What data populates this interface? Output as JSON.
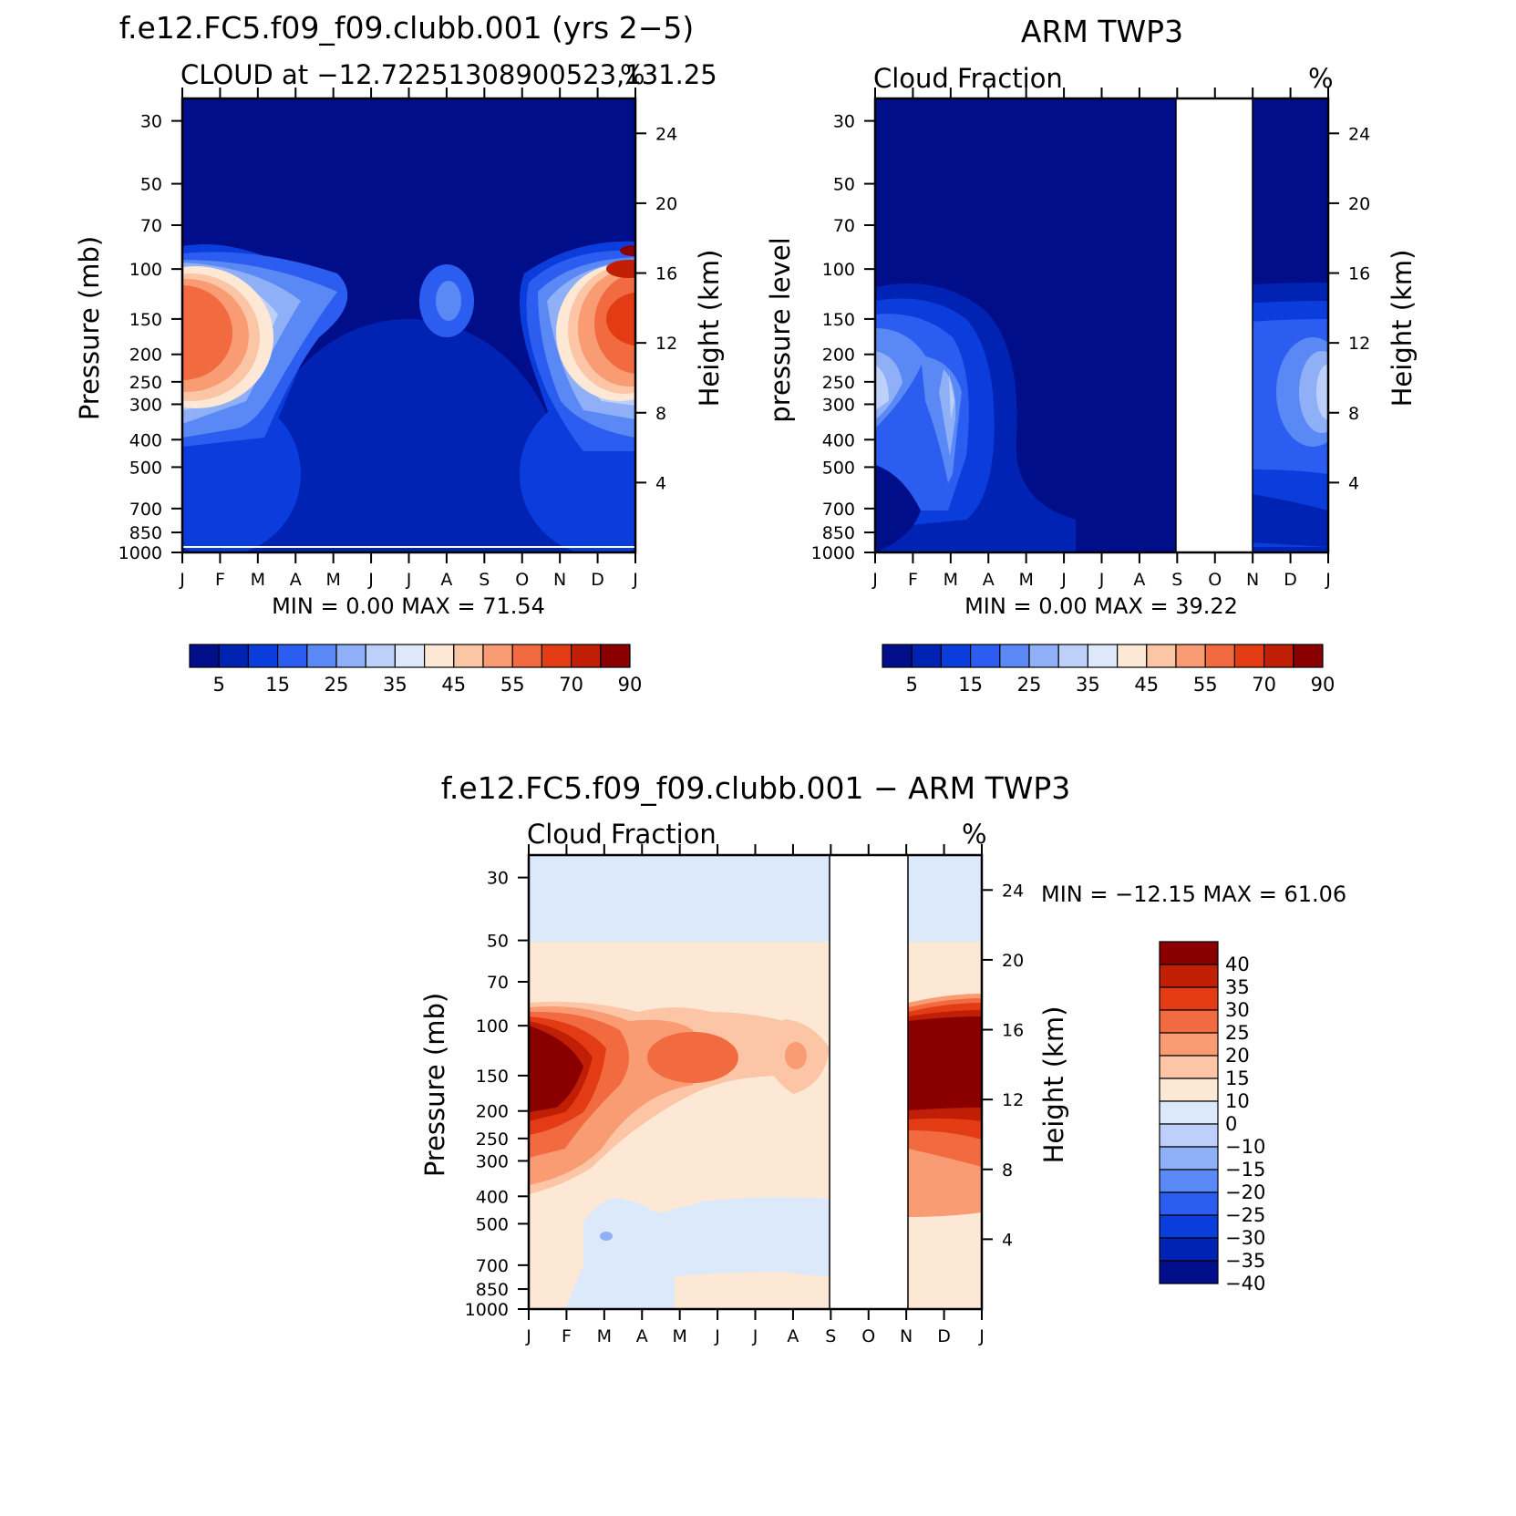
{
  "panels": [
    {
      "title": "f.e12.FC5.f09_f09.clubb.001 (yrs 2−5)",
      "subtitle": "CLOUD at −12.72251308900523,131.25",
      "unit": "%",
      "ylabel": "Pressure (mb)",
      "ylabel_right": "Height (km)",
      "minmax": "MIN =    0.00  MAX =    71.54"
    },
    {
      "title": "ARM TWP3",
      "subtitle": "Cloud Fraction",
      "unit": "%",
      "ylabel": "pressure level",
      "ylabel_right": "Height (km)",
      "minmax": "MIN =    0.00  MAX =    39.22"
    },
    {
      "title": "f.e12.FC5.f09_f09.clubb.001 − ARM TWP3",
      "subtitle": "Cloud Fraction",
      "unit": "%",
      "ylabel": "Pressure (mb)",
      "ylabel_right": "Height (km)",
      "minmax": "MIN = −12.15 MAX =    61.06"
    }
  ],
  "colors": {
    "seq": [
      "#000e8a",
      "#0023b4",
      "#0a3ddc",
      "#2b5ef0",
      "#5a88f5",
      "#8fb0f7",
      "#bcd0f9",
      "#dde9fb",
      "#fde8d6",
      "#fcc6a6",
      "#f99c74",
      "#f26b40",
      "#e33b14",
      "#c01f06",
      "#8a0000"
    ],
    "div": [
      "#000e8a",
      "#0023b4",
      "#0a3ddc",
      "#2b5ef0",
      "#5a88f5",
      "#8fb0f7",
      "#bcd0f9",
      "#dbe9fb",
      "#fde8d6",
      "#fcc6a6",
      "#f99c74",
      "#f26b40",
      "#e33b14",
      "#c01f06",
      "#8a0000"
    ]
  },
  "chart_data": [
    {
      "type": "heatmap",
      "x": [
        "J",
        "F",
        "M",
        "A",
        "M",
        "J",
        "J",
        "A",
        "S",
        "O",
        "N",
        "D",
        "J"
      ],
      "y_ticks": [
        30,
        50,
        70,
        100,
        150,
        200,
        250,
        300,
        400,
        500,
        700,
        850,
        1000
      ],
      "y_right_ticks": [
        24,
        20,
        16,
        12,
        8,
        4
      ],
      "y_scale": "log",
      "color_levels": [
        5,
        15,
        25,
        35,
        45,
        55,
        70,
        90
      ],
      "min": 0.0,
      "max": 71.54
    },
    {
      "type": "heatmap",
      "x": [
        "J",
        "F",
        "M",
        "A",
        "M",
        "J",
        "J",
        "A",
        "S",
        "O",
        "N",
        "D",
        "J"
      ],
      "y_ticks": [
        30,
        50,
        70,
        100,
        150,
        200,
        250,
        300,
        400,
        500,
        700,
        850,
        1000
      ],
      "y_right_ticks": [
        24,
        20,
        16,
        12,
        8,
        4
      ],
      "y_scale": "log",
      "missing_months": [
        "S",
        "O"
      ],
      "color_levels": [
        5,
        15,
        25,
        35,
        45,
        55,
        70,
        90
      ],
      "min": 0.0,
      "max": 39.22
    },
    {
      "type": "heatmap",
      "x": [
        "J",
        "F",
        "M",
        "A",
        "M",
        "J",
        "J",
        "A",
        "S",
        "O",
        "N",
        "D",
        "J"
      ],
      "y_ticks": [
        30,
        50,
        70,
        100,
        150,
        200,
        250,
        300,
        400,
        500,
        700,
        850,
        1000
      ],
      "y_right_ticks": [
        24,
        20,
        16,
        12,
        8,
        4
      ],
      "y_scale": "log",
      "missing_months": [
        "S",
        "O"
      ],
      "color_levels": [
        40,
        35,
        30,
        25,
        20,
        15,
        10,
        0,
        -10,
        -15,
        -20,
        -25,
        -30,
        -35,
        -40
      ],
      "min": -12.15,
      "max": 61.06
    }
  ]
}
